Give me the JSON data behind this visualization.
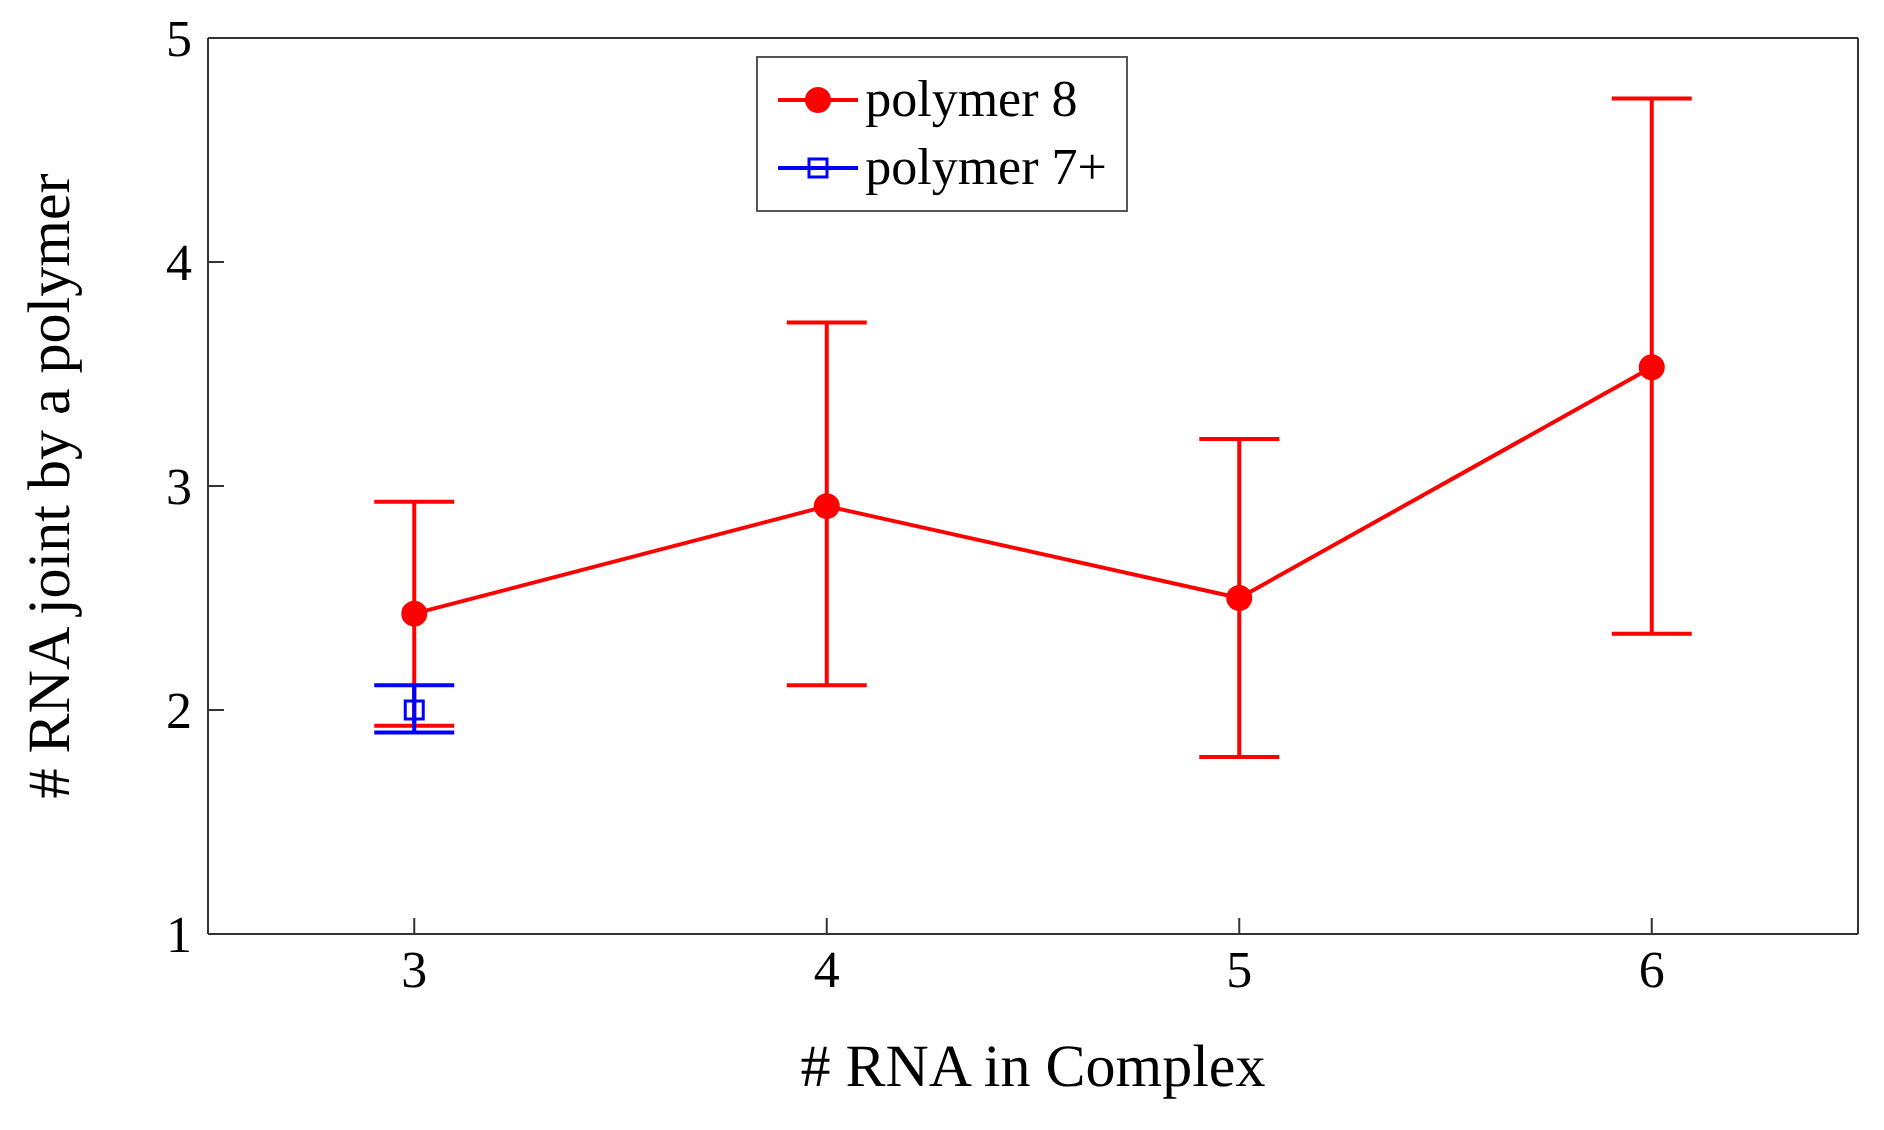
{
  "chart_data": {
    "type": "line",
    "xlabel": "# RNA in Complex",
    "ylabel": "# RNA joint by a polymer",
    "xlim": [
      2.5,
      6.5
    ],
    "xticks": [
      3,
      4,
      5,
      6
    ],
    "ylim": [
      1,
      5
    ],
    "yticks": [
      1,
      2,
      3,
      4,
      5
    ],
    "legend": "top",
    "line_style": "solid",
    "series": [
      {
        "name": "polymer 8",
        "color": "#ff0000",
        "marker": "circle",
        "x": [
          3,
          4,
          5,
          6
        ],
        "values": [
          2.43,
          2.91,
          2.5,
          3.53
        ],
        "errors": [
          [
            1.93,
            2.93
          ],
          [
            2.11,
            3.73
          ],
          [
            1.79,
            3.21
          ],
          [
            2.34,
            4.73
          ]
        ]
      },
      {
        "name": "polymer 7+",
        "color": "#0000ff",
        "marker": "square",
        "x": [
          3
        ],
        "values": [
          2.0
        ],
        "errors": [
          [
            1.9,
            2.11
          ]
        ]
      }
    ]
  }
}
